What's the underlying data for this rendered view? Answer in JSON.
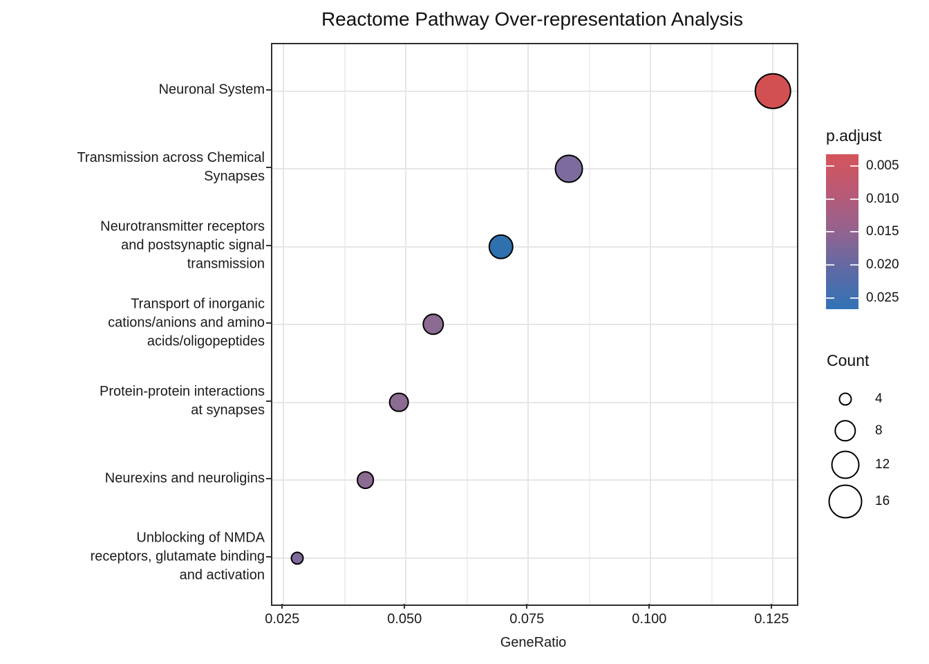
{
  "title": "Reactome Pathway Over-representation Analysis",
  "axes": {
    "x_label": "GeneRatio",
    "x_ticks": [
      "0.025",
      "0.050",
      "0.075",
      "0.100",
      "0.125"
    ],
    "x_tick_values": [
      0.025,
      0.05,
      0.075,
      0.1,
      0.125
    ],
    "x_minor_values": [
      0.0375,
      0.0625,
      0.0875,
      0.1125
    ],
    "x_range": [
      0.0227,
      0.1299
    ]
  },
  "legend_padjust": {
    "title": "p.adjust",
    "ticks": [
      "0.005",
      "0.010",
      "0.015",
      "0.020",
      "0.025"
    ],
    "tick_values": [
      0.005,
      0.01,
      0.015,
      0.02,
      0.025
    ],
    "range": [
      0.0032,
      0.0267
    ],
    "gradient": [
      "#d5545a",
      "#b95a76",
      "#926390",
      "#5e6aa5",
      "#3273b6"
    ]
  },
  "legend_count": {
    "title": "Count",
    "sizes": [
      4,
      8,
      12,
      16
    ]
  },
  "chart_data": {
    "type": "scatter",
    "title": "Reactome Pathway Over-representation Analysis",
    "xlabel": "GeneRatio",
    "ylabel": "",
    "xlim": [
      0.0227,
      0.1299
    ],
    "grid": true,
    "legend_position": "right",
    "points": [
      {
        "name": "Neuronal System",
        "label_lines": [
          "Neuronal System"
        ],
        "gene_ratio": 0.125,
        "count": 18,
        "p_adjust": 0.003,
        "color": "#d25052"
      },
      {
        "name": "Transmission across Chemical Synapses",
        "label_lines": [
          "Transmission across Chemical",
          "Synapses"
        ],
        "gene_ratio": 0.0833,
        "count": 12,
        "p_adjust": 0.019,
        "color": "#7c6b9c"
      },
      {
        "name": "Neurotransmitter receptors and postsynaptic signal transmission",
        "label_lines": [
          "Neurotransmitter receptors",
          "and postsynaptic signal",
          "transmission"
        ],
        "gene_ratio": 0.0694,
        "count": 10,
        "p_adjust": 0.026,
        "color": "#2f70ae"
      },
      {
        "name": "Transport of inorganic cations/anions and amino acids/oligopeptides",
        "label_lines": [
          "Transport of inorganic",
          "cations/anions and amino",
          "acids/oligopeptides"
        ],
        "gene_ratio": 0.0556,
        "count": 8,
        "p_adjust": 0.016,
        "color": "#8b6b92"
      },
      {
        "name": "Protein-protein interactions at synapses",
        "label_lines": [
          "Protein-protein interactions",
          "at synapses"
        ],
        "gene_ratio": 0.0486,
        "count": 7,
        "p_adjust": 0.016,
        "color": "#8b6b92"
      },
      {
        "name": "Neurexins and neuroligins",
        "label_lines": [
          "Neurexins and neuroligins"
        ],
        "gene_ratio": 0.0417,
        "count": 6,
        "p_adjust": 0.016,
        "color": "#8c6b93"
      },
      {
        "name": "Unblocking of NMDA receptors, glutamate binding and activation",
        "label_lines": [
          "Unblocking of NMDA",
          "receptors, glutamate binding",
          "and activation"
        ],
        "gene_ratio": 0.0278,
        "count": 4,
        "p_adjust": 0.019,
        "color": "#7f6a9c"
      }
    ]
  }
}
